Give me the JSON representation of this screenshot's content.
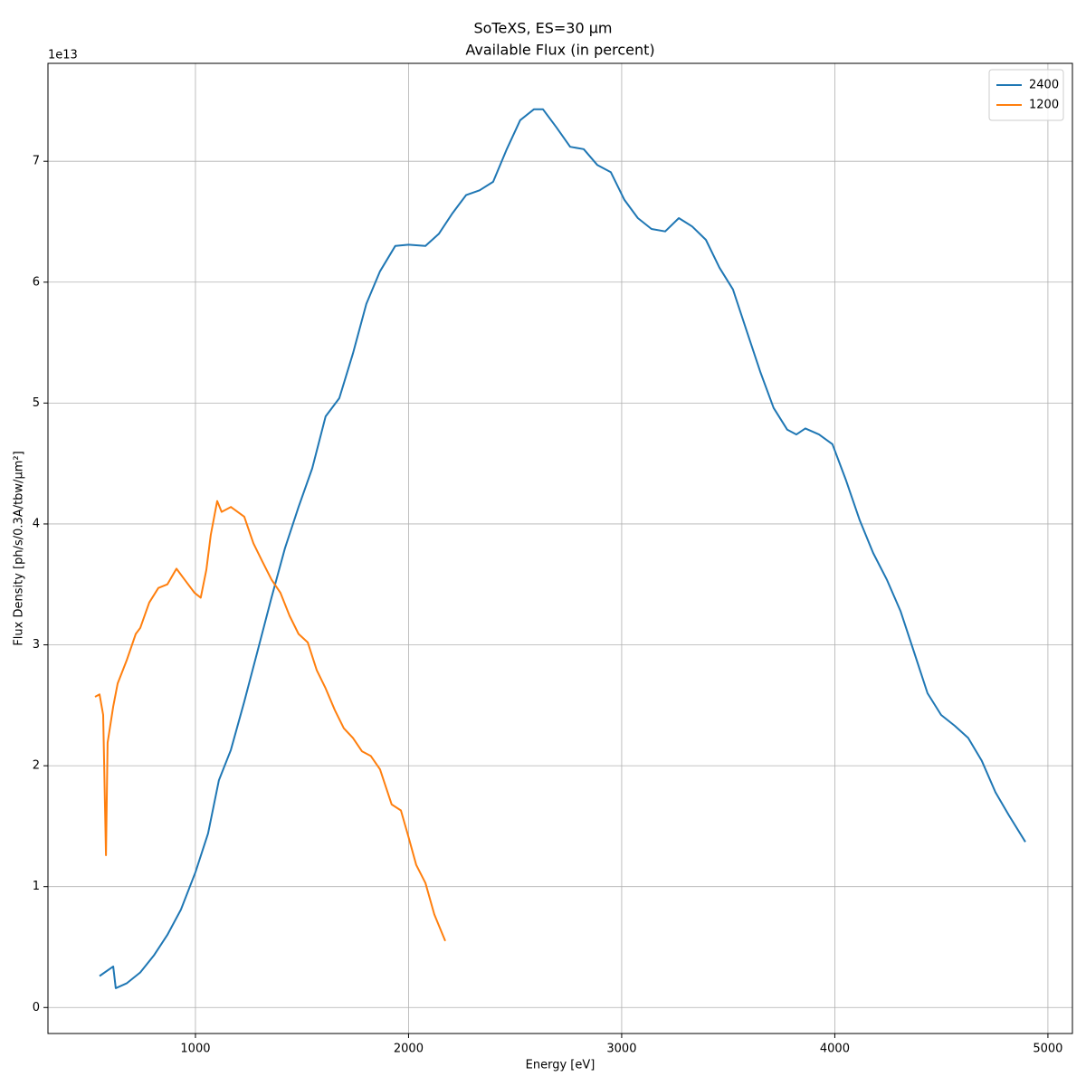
{
  "chart_data": {
    "type": "line",
    "suptitle": "SoTeXS, ES=30 µm",
    "title": "Available Flux (in percent)",
    "x_label": "Energy [eV]",
    "y_label": "Flux Density [ph/s/0.3A/tbw/µm²]",
    "y_offset_label": "1e13",
    "xlim": [
      308,
      5115
    ],
    "ylim": [
      -0.215,
      7.81
    ],
    "xticks": [
      1000,
      2000,
      3000,
      4000,
      5000
    ],
    "yticks": [
      0,
      1,
      2,
      3,
      4,
      5,
      6,
      7
    ],
    "grid": true,
    "legend": "upper right",
    "series": [
      {
        "name": "2400",
        "color": "#1f77b4",
        "x": [
          550,
          614,
          626,
          677,
          741,
          805,
          868,
          932,
          1000,
          1059,
          1110,
          1166,
          1229,
          1293,
          1357,
          1420,
          1484,
          1548,
          1611,
          1675,
          1739,
          1802,
          1866,
          1938,
          2000,
          2079,
          2142,
          2206,
          2270,
          2333,
          2397,
          2461,
          2524,
          2588,
          2631,
          2694,
          2758,
          2822,
          2885,
          2949,
          3013,
          3076,
          3140,
          3204,
          3268,
          3331,
          3395,
          3459,
          3522,
          3586,
          3650,
          3713,
          3777,
          3820,
          3862,
          3926,
          3989,
          4053,
          4117,
          4180,
          4244,
          4308,
          4372,
          4435,
          4499,
          4563,
          4626,
          4690,
          4754,
          4817,
          4894
        ],
        "values": [
          0.26,
          0.34,
          0.16,
          0.2,
          0.29,
          0.43,
          0.6,
          0.81,
          1.12,
          1.44,
          1.88,
          2.13,
          2.53,
          2.96,
          3.39,
          3.8,
          4.14,
          4.46,
          4.89,
          5.04,
          5.41,
          5.82,
          6.09,
          6.3,
          6.31,
          6.3,
          6.4,
          6.57,
          6.72,
          6.76,
          6.83,
          7.1,
          7.34,
          7.43,
          7.43,
          7.28,
          7.12,
          7.1,
          6.97,
          6.91,
          6.68,
          6.53,
          6.44,
          6.42,
          6.53,
          6.46,
          6.35,
          6.12,
          5.94,
          5.6,
          5.26,
          4.96,
          4.78,
          4.74,
          4.79,
          4.74,
          4.66,
          4.36,
          4.03,
          3.76,
          3.54,
          3.28,
          2.94,
          2.6,
          2.42,
          2.33,
          2.23,
          2.04,
          1.78,
          1.59,
          1.37
        ]
      },
      {
        "name": "1200",
        "color": "#ff7f0e",
        "x": [
          529,
          550,
          567,
          580,
          588,
          614,
          635,
          677,
          720,
          741,
          783,
          826,
          868,
          911,
          953,
          996,
          1025,
          1051,
          1072,
          1102,
          1123,
          1166,
          1229,
          1272,
          1314,
          1357,
          1399,
          1442,
          1484,
          1527,
          1569,
          1611,
          1654,
          1696,
          1739,
          1781,
          1823,
          1866,
          1921,
          1964,
          2000,
          2036,
          2079,
          2121,
          2172
        ],
        "values": [
          2.57,
          2.59,
          2.42,
          1.26,
          2.19,
          2.49,
          2.68,
          2.87,
          3.09,
          3.14,
          3.35,
          3.47,
          3.5,
          3.63,
          3.53,
          3.43,
          3.39,
          3.62,
          3.91,
          4.19,
          4.1,
          4.14,
          4.06,
          3.84,
          3.69,
          3.54,
          3.43,
          3.24,
          3.09,
          3.02,
          2.79,
          2.64,
          2.46,
          2.31,
          2.23,
          2.12,
          2.08,
          1.97,
          1.68,
          1.63,
          1.41,
          1.18,
          1.03,
          0.77,
          0.55
        ]
      }
    ]
  }
}
